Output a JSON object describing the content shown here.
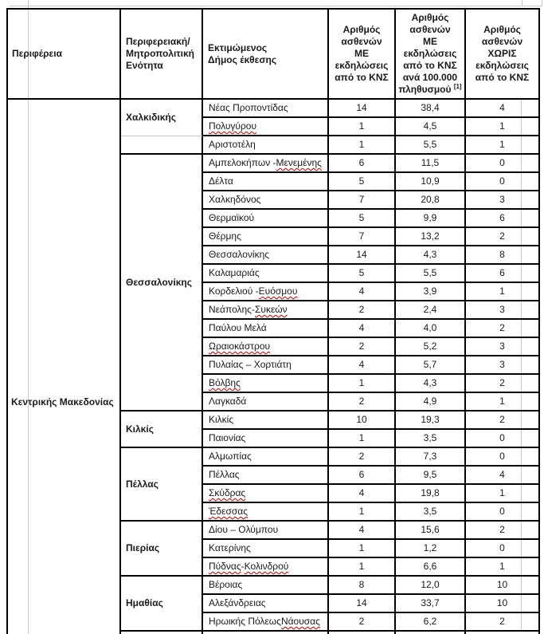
{
  "colors": {
    "table_border": "#000000",
    "hidden_gridline": "#c9c9c9",
    "spellcheck_underline": "#c00000",
    "text": "#1a1a1a"
  },
  "header": {
    "col1": "Περιφέρεια",
    "col2": "Περιφερειακή/\nΜητροπολιτική\nΕνότητα",
    "col3": "Εκτιμώμενος\nΔήμος έκθεσης",
    "col4": "Αριθμός\nασθενών\nΜΕ\nεκδηλώσεις\nαπό το ΚΝΣ",
    "col5_main": "Αριθμός\nασθενών\nΜΕ\nεκδηλώσεις\nαπό το ΚΝΣ\nανά 100.000\nπληθυσμού ",
    "col5_sup": "[1]",
    "col6": "Αριθμός\nασθενών\nΧΩΡΙΣ\nεκδηλώσεις\nαπό το ΚΝΣ"
  },
  "region": {
    "name": "Κεντρικής Μακεδονίας"
  },
  "sections": [
    {
      "unit": "Χαλκιδικής",
      "unit_span": 2,
      "rows": [
        {
          "name": "Νέας Προποντίδας",
          "with_cns": "14",
          "rate": "38,4",
          "without_cns": "4"
        },
        {
          "name": "Πολυγύρου",
          "sq": [
            "Πολυγύρου"
          ],
          "with_cns": "1",
          "rate": "4,5",
          "without_cns": "1"
        },
        {
          "name": "Αριστοτέλη",
          "with_cns": "1",
          "rate": "5,5",
          "without_cns": "1"
        }
      ]
    },
    {
      "unit": "Θεσσαλονίκης",
      "rows": [
        {
          "name": "Αμπελοκήπων - Μενεμένης",
          "sq": [
            "Μενεμένης"
          ],
          "with_cns": "6",
          "rate": "11,5",
          "without_cns": "0"
        },
        {
          "name": "Δέλτα",
          "with_cns": "5",
          "rate": "10,9",
          "without_cns": "0"
        },
        {
          "name": "Χαλκηδόνος",
          "with_cns": "7",
          "rate": "20,8",
          "without_cns": "3"
        },
        {
          "name": "Θερμαϊκού",
          "with_cns": "5",
          "rate": "9,9",
          "without_cns": "6"
        },
        {
          "name": "Θέρμης",
          "with_cns": "7",
          "rate": "13,2",
          "without_cns": "2"
        },
        {
          "name": "Θεσσαλονίκης",
          "with_cns": "14",
          "rate": "4,3",
          "without_cns": "8"
        },
        {
          "name": "Καλαμαριάς",
          "with_cns": "5",
          "rate": "5,5",
          "without_cns": "6"
        },
        {
          "name": "Κορδελιού - Ευόσμου",
          "sq": [
            "Ευόσμου"
          ],
          "with_cns": "4",
          "rate": "3,9",
          "without_cns": "1"
        },
        {
          "name": "Νεάπολης- Συκεών",
          "sq": [
            "Συκεών"
          ],
          "with_cns": "2",
          "rate": "2,4",
          "without_cns": "3"
        },
        {
          "name": "Παύλου Μελά",
          "with_cns": "4",
          "rate": "4,0",
          "without_cns": "2"
        },
        {
          "name": "Ωραιοκάστρου",
          "sq": [
            "Ωραιοκάστρου"
          ],
          "with_cns": "2",
          "rate": "5,2",
          "without_cns": "3"
        },
        {
          "name": "Πυλαίας – Χορτιάτη",
          "with_cns": "4",
          "rate": "5,7",
          "without_cns": "3"
        },
        {
          "name": "Βόλβης",
          "sq": [
            "Βόλβης"
          ],
          "with_cns": "1",
          "rate": "4,3",
          "without_cns": "2"
        },
        {
          "name": "Λαγκαδά",
          "with_cns": "2",
          "rate": "4,9",
          "without_cns": "1"
        }
      ]
    },
    {
      "unit": "Κιλκίς",
      "rows": [
        {
          "name": "Κιλκίς",
          "with_cns": "10",
          "rate": "19,3",
          "without_cns": "2"
        },
        {
          "name": "Παιονίας",
          "with_cns": "1",
          "rate": "3,5",
          "without_cns": "0"
        }
      ]
    },
    {
      "unit": "Πέλλας",
      "rows": [
        {
          "name": "Αλμωπίας",
          "with_cns": "2",
          "rate": "7,3",
          "without_cns": "0"
        },
        {
          "name": "Πέλλας",
          "with_cns": "6",
          "rate": "9,5",
          "without_cns": "4"
        },
        {
          "name": "Σκύδρας",
          "sq": [
            "Σκύδρας"
          ],
          "with_cns": "4",
          "rate": "19,8",
          "without_cns": "1"
        },
        {
          "name": "Έδεσσας",
          "sq": [
            "Έδεσσας"
          ],
          "with_cns": "1",
          "rate": "3,5",
          "without_cns": "0"
        }
      ]
    },
    {
      "unit": "Πιερίας",
      "rows": [
        {
          "name": "Δίου – Ολύμπου",
          "with_cns": "4",
          "rate": "15,6",
          "without_cns": "2"
        },
        {
          "name": "Κατερίνης",
          "with_cns": "1",
          "rate": "1,2",
          "without_cns": "0"
        },
        {
          "name": "Πύδνας- Κολινδρού",
          "sq": [
            "Πύδνας",
            "Κολινδρού"
          ],
          "with_cns": "1",
          "rate": "6,6",
          "without_cns": "1"
        }
      ]
    },
    {
      "unit": "Ημαθίας",
      "rows": [
        {
          "name": "Βέροιας",
          "with_cns": "8",
          "rate": "12,0",
          "without_cns": "10"
        },
        {
          "name": "Αλεξάνδρειας",
          "with_cns": "14",
          "rate": "33,7",
          "without_cns": "10"
        },
        {
          "name": "Ηρωικής Πόλεως Νάουσας",
          "sq": [
            "Νάουσας"
          ],
          "with_cns": "2",
          "rate": "6,2",
          "without_cns": "2"
        }
      ]
    }
  ]
}
